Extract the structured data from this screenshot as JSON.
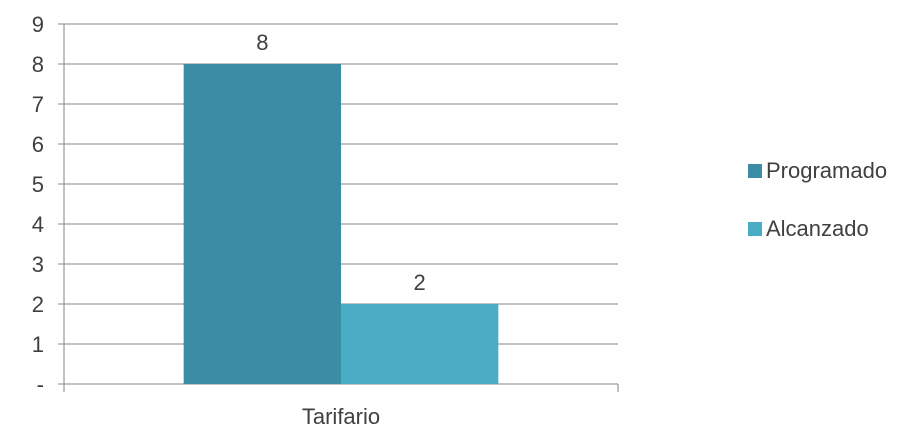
{
  "chart_data": {
    "type": "bar",
    "categories": [
      "Tarifario"
    ],
    "series": [
      {
        "name": "Programado",
        "values": [
          8
        ],
        "color": "#3b8ca5"
      },
      {
        "name": "Alcanzado",
        "values": [
          2
        ],
        "color": "#4bacc6"
      }
    ],
    "ylim": [
      0,
      9
    ],
    "y_ticks": [
      "-",
      "1",
      "2",
      "3",
      "4",
      "5",
      "6",
      "7",
      "8",
      "9"
    ],
    "data_labels": [
      "8",
      "2"
    ],
    "grid": true,
    "legend_position": "right"
  }
}
